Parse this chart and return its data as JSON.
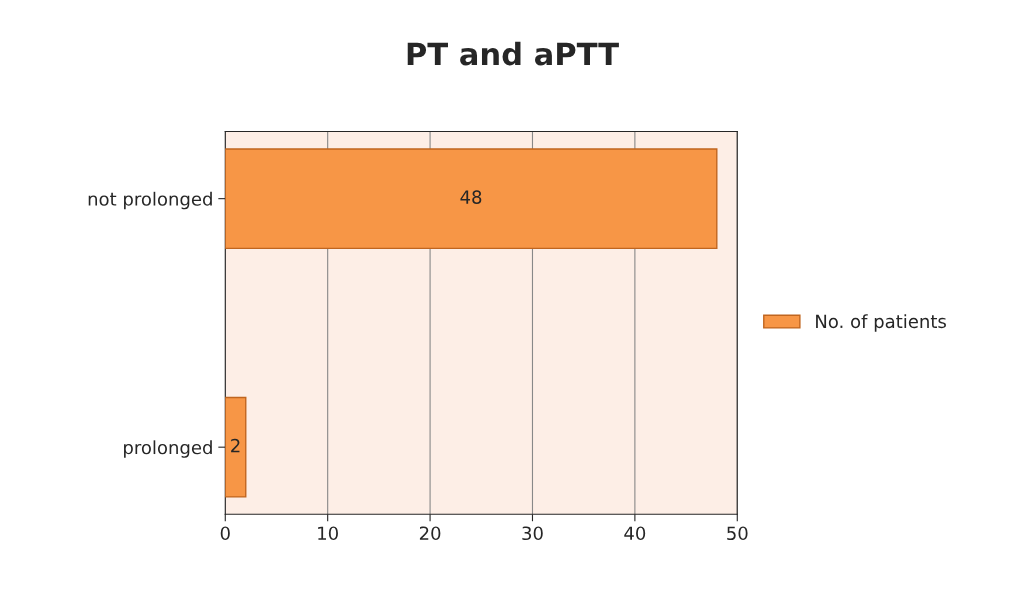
{
  "chart_data": {
    "type": "bar",
    "title": "PT and aPTT",
    "orientation": "horizontal",
    "categories": [
      "not prolonged",
      "prolonged"
    ],
    "series": [
      {
        "name": "No. of patients",
        "color": "#f79646",
        "values": [
          48,
          2
        ]
      }
    ],
    "xlim": [
      0,
      50
    ],
    "xticks": [
      0,
      10,
      20,
      30,
      40,
      50
    ],
    "grid": "x",
    "legend": "right",
    "data_labels": true
  }
}
